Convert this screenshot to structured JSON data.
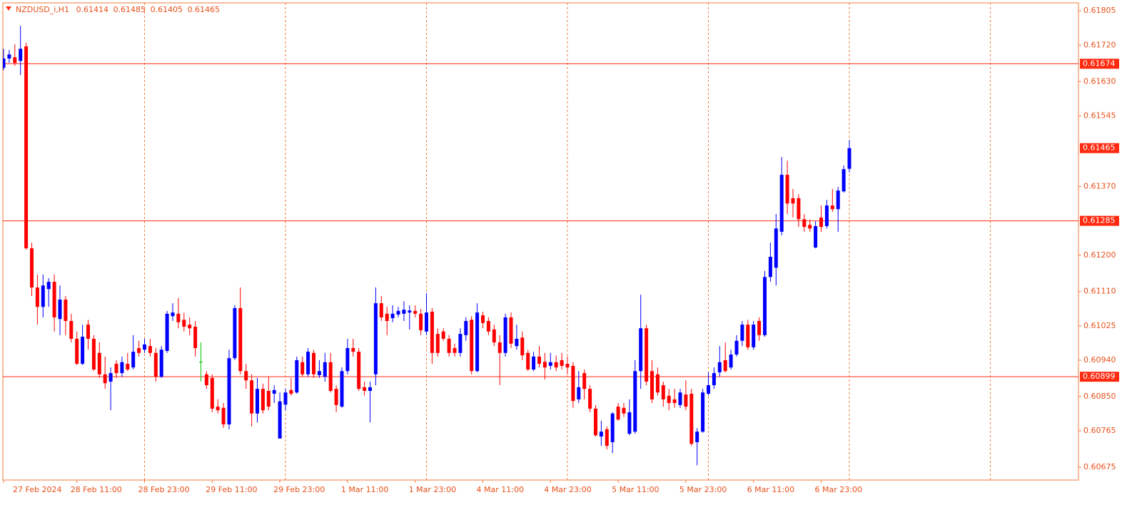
{
  "chart_data": {
    "type": "candlestick",
    "symbol": "NZDUSD_i,H1",
    "categories": [
      "27 Feb 2024",
      null,
      null,
      null,
      null,
      null,
      null,
      null,
      null,
      null,
      null,
      null,
      null,
      "28 Feb 11:00",
      null,
      null,
      null,
      null,
      null,
      null,
      null,
      null,
      null,
      null,
      null,
      "28 Feb 23:00",
      null,
      null,
      null,
      null,
      null,
      null,
      null,
      null,
      null,
      null,
      null,
      "29 Feb 11:00",
      null,
      null,
      null,
      null,
      null,
      null,
      null,
      null,
      null,
      null,
      null,
      "29 Feb 23:00",
      null,
      null,
      null,
      null,
      null,
      null,
      null,
      null,
      null,
      null,
      null,
      "1 Mar 11:00",
      null,
      null,
      null,
      null,
      null,
      null,
      null,
      null,
      null,
      null,
      null,
      "1 Mar 23:00",
      null,
      null,
      null,
      null,
      null,
      null,
      null,
      null,
      null,
      null,
      null,
      "4 Mar 11:00",
      null,
      null,
      null,
      null,
      null,
      null,
      null,
      null,
      null,
      null,
      null,
      "4 Mar 23:00",
      null,
      null,
      null,
      null,
      null,
      null,
      null,
      null,
      null,
      null,
      null,
      "5 Mar 11:00",
      null,
      null,
      null,
      null,
      null,
      null,
      null,
      null,
      null,
      null,
      null,
      "5 Mar 23:00",
      null,
      null,
      null,
      null,
      null,
      null,
      null,
      null,
      null,
      null,
      null,
      "6 Mar 11:00",
      null,
      null,
      null,
      null,
      null,
      null,
      null,
      null,
      null,
      null,
      null,
      "6 Mar 23:00",
      null,
      null,
      null,
      null,
      null
    ],
    "open": [
      0.61664,
      0.61687,
      0.6169,
      0.61681,
      0.61717,
      0.61217,
      0.6112,
      0.61072,
      0.61116,
      0.61134,
      0.61042,
      0.6109,
      0.61037,
      0.60993,
      0.60931,
      0.61028,
      0.60993,
      0.60958,
      0.60905,
      0.60887,
      0.60931,
      0.60908,
      0.60931,
      0.60922,
      0.6097,
      0.60966,
      0.60975,
      0.60958,
      0.60899,
      0.60963,
      0.61049,
      0.61055,
      0.6104,
      0.61028,
      0.61023,
      0.60936,
      0.60905,
      0.60896,
      0.60825,
      0.60822,
      0.60781,
      0.60945,
      0.61069,
      0.60913,
      0.6089,
      0.60808,
      0.60869,
      0.60864,
      0.60857,
      0.60746,
      0.6083,
      0.60866,
      0.6086,
      0.60935,
      0.60905,
      0.60958,
      0.60903,
      0.60899,
      0.60935,
      0.60869,
      0.60825,
      0.60913,
      0.6097,
      0.60961,
      0.60873,
      0.60864,
      0.60905,
      0.61081,
      0.61055,
      0.61044,
      0.61053,
      0.61055,
      0.61058,
      0.61062,
      0.61055,
      0.61011,
      0.6106,
      0.61005,
      0.61011,
      0.60993,
      0.6097,
      0.60958,
      0.61002,
      0.6104,
      0.60913,
      0.61051,
      0.61037,
      0.61016,
      0.60984,
      0.60958,
      0.61046,
      0.60975,
      0.60996,
      0.60958,
      0.60917,
      0.60949,
      0.60936,
      0.60926,
      0.60935,
      0.6094,
      0.60931,
      0.60926,
      0.60843,
      0.60908,
      0.60869,
      0.6082,
      0.60751,
      0.60769,
      0.60737,
      0.60825,
      0.60822,
      0.60758,
      0.60763,
      0.60913,
      0.61019,
      0.60913,
      0.60905,
      0.60878,
      0.60852,
      0.60843,
      0.60829,
      0.60855,
      0.60857,
      0.60737,
      0.60763,
      0.60857,
      0.60878,
      0.6091,
      0.6094,
      0.60922,
      0.60954,
      0.60988,
      0.61028,
      0.60972,
      0.61037,
      0.61002,
      0.61146,
      0.61169,
      0.61258,
      0.61399,
      0.61341,
      0.61341,
      0.61289,
      0.61275,
      0.61219,
      0.61293,
      0.61272,
      0.61323,
      0.61314,
      0.61358,
      0.61414
    ],
    "high": [
      0.61711,
      0.61708,
      0.61722,
      0.61768,
      0.61726,
      0.61231,
      0.61152,
      0.61152,
      0.61143,
      0.61152,
      0.61125,
      0.61099,
      0.61055,
      0.61011,
      0.61028,
      0.6104,
      0.61002,
      0.60984,
      0.60949,
      0.60922,
      0.6094,
      0.60949,
      0.60958,
      0.61002,
      0.60988,
      0.60993,
      0.60993,
      0.6097,
      0.60975,
      0.61062,
      0.61081,
      0.61094,
      0.61058,
      0.61046,
      0.61037,
      0.60984,
      0.60913,
      0.60905,
      0.60843,
      0.60834,
      0.60966,
      0.61076,
      0.6112,
      0.60931,
      0.60905,
      0.60896,
      0.60882,
      0.60899,
      0.60878,
      0.6086,
      0.60869,
      0.60896,
      0.60949,
      0.60949,
      0.6097,
      0.60966,
      0.6094,
      0.60958,
      0.60958,
      0.60878,
      0.60922,
      0.60993,
      0.60993,
      0.6097,
      0.60887,
      0.60887,
      0.6112,
      0.61099,
      0.61072,
      0.61076,
      0.61072,
      0.61086,
      0.61076,
      0.61076,
      0.61067,
      0.61106,
      0.61069,
      0.61019,
      0.61019,
      0.61002,
      0.60981,
      0.61019,
      0.61046,
      0.61049,
      0.61081,
      0.6106,
      0.61046,
      0.61028,
      0.61002,
      0.61055,
      0.61058,
      0.61028,
      0.61011,
      0.60966,
      0.60961,
      0.60975,
      0.60958,
      0.60958,
      0.60952,
      0.60958,
      0.60949,
      0.60935,
      0.60913,
      0.60917,
      0.60878,
      0.60829,
      0.6079,
      0.60776,
      0.60811,
      0.60834,
      0.60834,
      0.60843,
      0.6094,
      0.61102,
      0.61028,
      0.6094,
      0.60922,
      0.60887,
      0.60869,
      0.60869,
      0.60869,
      0.6089,
      0.60869,
      0.60772,
      0.60869,
      0.6091,
      0.60922,
      0.60975,
      0.60984,
      0.60966,
      0.61002,
      0.61037,
      0.6104,
      0.61037,
      0.61046,
      0.61161,
      0.61231,
      0.61302,
      0.61443,
      0.61434,
      0.61364,
      0.61351,
      0.61302,
      0.61288,
      0.61284,
      0.61323,
      0.61337,
      0.61364,
      0.61369,
      0.61422,
      0.61485
    ],
    "low": [
      0.61658,
      0.61676,
      0.61669,
      0.61646,
      0.61214,
      0.61099,
      0.61028,
      0.61046,
      0.61072,
      0.61011,
      0.61002,
      0.61002,
      0.60984,
      0.60928,
      0.60928,
      0.60966,
      0.60913,
      0.60896,
      0.60869,
      0.60816,
      0.60896,
      0.60899,
      0.60913,
      0.60917,
      0.60949,
      0.60958,
      0.60949,
      0.60887,
      0.60896,
      0.60958,
      0.61037,
      0.61019,
      0.61011,
      0.61002,
      0.60949,
      0.60887,
      0.60869,
      0.60811,
      0.60808,
      0.60772,
      0.60769,
      0.6094,
      0.60905,
      0.60869,
      0.60776,
      0.60786,
      0.60808,
      0.60816,
      0.60834,
      0.60746,
      0.60816,
      0.60852,
      0.60857,
      0.60899,
      0.60899,
      0.60896,
      0.60896,
      0.60887,
      0.6086,
      0.60811,
      0.60822,
      0.60905,
      0.60949,
      0.60864,
      0.60852,
      0.60786,
      0.60878,
      0.61037,
      0.61002,
      0.61034,
      0.61046,
      0.61037,
      0.61016,
      0.61046,
      0.61002,
      0.61002,
      0.60931,
      0.60949,
      0.60988,
      0.60949,
      0.60949,
      0.60949,
      0.60988,
      0.60905,
      0.6091,
      0.61019,
      0.61002,
      0.60975,
      0.60878,
      0.60949,
      0.6097,
      0.60966,
      0.6094,
      0.60913,
      0.60913,
      0.60922,
      0.60892,
      0.60917,
      0.60913,
      0.60917,
      0.60905,
      0.60822,
      0.60834,
      0.60843,
      0.60811,
      0.60751,
      0.60728,
      0.60719,
      0.6071,
      0.6079,
      0.60799,
      0.60754,
      0.60758,
      0.60869,
      0.60878,
      0.60834,
      0.60852,
      0.60825,
      0.60816,
      0.60822,
      0.60822,
      0.60816,
      0.60728,
      0.6068,
      0.6076,
      0.60852,
      0.60869,
      0.60899,
      0.6091,
      0.60917,
      0.60949,
      0.60975,
      0.60966,
      0.60966,
      0.60988,
      0.60998,
      0.61134,
      0.61125,
      0.61249,
      0.61302,
      0.61293,
      0.6127,
      0.61258,
      0.61258,
      0.61217,
      0.61258,
      0.61266,
      0.61307,
      0.61258,
      0.61355,
      0.61405
    ],
    "close": [
      0.61687,
      0.61697,
      0.61676,
      0.61711,
      0.61217,
      0.6112,
      0.61072,
      0.61125,
      0.61134,
      0.61046,
      0.6109,
      0.61037,
      0.60993,
      0.60931,
      0.60998,
      0.60993,
      0.60917,
      0.60905,
      0.60883,
      0.60908,
      0.60908,
      0.60935,
      0.60917,
      0.60961,
      0.60958,
      0.60979,
      0.60958,
      0.60899,
      0.60966,
      0.61055,
      0.61058,
      0.61034,
      0.61023,
      0.61019,
      0.6097,
      0.60936,
      0.60878,
      0.6082,
      0.60816,
      0.60781,
      0.60945,
      0.61069,
      0.60913,
      0.6089,
      0.60808,
      0.60869,
      0.60816,
      0.60825,
      0.60866,
      0.60838,
      0.6086,
      0.60857,
      0.6094,
      0.60905,
      0.60961,
      0.60905,
      0.60913,
      0.60935,
      0.60864,
      0.60829,
      0.60913,
      0.6097,
      0.60961,
      0.60869,
      0.60864,
      0.60873,
      0.61081,
      0.61046,
      0.61037,
      0.61055,
      0.61062,
      0.61065,
      0.61063,
      0.61055,
      0.61014,
      0.61058,
      0.60958,
      0.60958,
      0.60993,
      0.60958,
      0.60958,
      0.61005,
      0.61037,
      0.60913,
      0.61058,
      0.61032,
      0.61011,
      0.60984,
      0.60958,
      0.61046,
      0.60981,
      0.60993,
      0.60952,
      0.60917,
      0.60949,
      0.60931,
      0.60922,
      0.60935,
      0.60922,
      0.60926,
      0.60922,
      0.60839,
      0.60873,
      0.60869,
      0.6082,
      0.60754,
      0.60763,
      0.60728,
      0.60808,
      0.60793,
      0.60808,
      0.60811,
      0.60913,
      0.61019,
      0.60887,
      0.60843,
      0.6086,
      0.60843,
      0.60834,
      0.60834,
      0.6086,
      0.60825,
      0.60733,
      0.60763,
      0.6086,
      0.60878,
      0.60908,
      0.60935,
      0.60913,
      0.60954,
      0.60988,
      0.61028,
      0.60972,
      0.61028,
      0.61002,
      0.61146,
      0.61196,
      0.61266,
      0.61399,
      0.61328,
      0.61328,
      0.61289,
      0.6127,
      0.61266,
      0.61272,
      0.6127,
      0.61323,
      0.61314,
      0.6136,
      0.61413,
      0.61465
    ],
    "up_color": "#0000ff",
    "down_color": "#ff0000",
    "doji_color": "#00c000",
    "ylim": [
      0.60645,
      0.61823
    ],
    "yticks": [
      0.61805,
      {
        "value": 0.6172,
        "label": "0.61720"
      },
      {
        "value": 0.6163,
        "label": "0.61630"
      },
      0.61545,
      {
        "value": 0.6137,
        "label": "0.61370"
      },
      {
        "value": 0.612,
        "label": "0.61200"
      },
      {
        "value": 0.6111,
        "label": "0.61110"
      },
      0.61025,
      {
        "value": 0.6094,
        "label": "0.60940"
      },
      {
        "value": 0.6085,
        "label": "0.60850"
      },
      0.60765,
      0.60675
    ],
    "price_lines": [
      0.61674,
      0.61285,
      0.60899
    ],
    "price_line_color": "#ff2a10",
    "grid": true
  }
}
